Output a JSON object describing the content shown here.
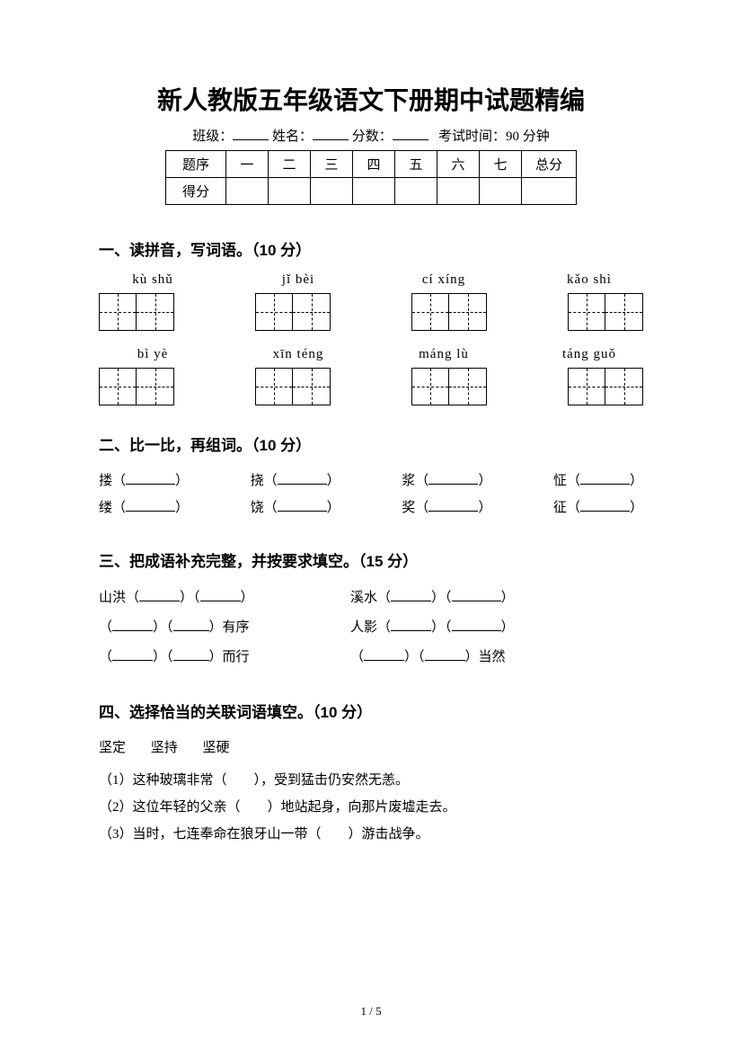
{
  "title": "新人教版五年级语文下册期中试题精编",
  "meta": {
    "class_label": "班级：",
    "name_label": "姓名：",
    "score_label": "分数：",
    "time_label": "考试时间：90 分钟"
  },
  "score_table": {
    "row1": [
      "题序",
      "一",
      "二",
      "三",
      "四",
      "五",
      "六",
      "七",
      "总分"
    ],
    "row2_label": "得分"
  },
  "q1": {
    "heading": "一、读拼音，写词语。（10 分）",
    "row1": [
      "kù  shǔ",
      "jǐ bèi",
      "cí xíng",
      "kǎo shì"
    ],
    "row2": [
      "bì  yè",
      "xīn téng",
      "máng lù",
      "táng guǒ"
    ]
  },
  "q2": {
    "heading": "二、比一比，再组词。（10 分）",
    "rows": [
      [
        "搂",
        "挠",
        "浆",
        "怔"
      ],
      [
        "缕",
        "饶",
        "奖",
        "征"
      ]
    ]
  },
  "q3": {
    "heading": "三、把成语补充完整，并按要求填空。（15 分）",
    "lines": [
      {
        "left_pre": "山洪",
        "left_suf": "",
        "right_pre": "溪水",
        "right_suf": ""
      },
      {
        "left_pre": "",
        "left_suf": "有序",
        "right_pre": "人影",
        "right_suf": ""
      },
      {
        "left_pre": "",
        "left_suf": "而行",
        "right_pre": "",
        "right_suf": "当然"
      }
    ]
  },
  "q4": {
    "heading": "四、选择恰当的关联词语填空。（10 分）",
    "words": [
      "坚定",
      "坚持",
      "坚硬"
    ],
    "items": [
      "（1）这种玻璃非常（　　），受到猛击仍安然无恙。",
      "（2）这位年轻的父亲（　　）地站起身，向那片废墟走去。",
      "（3）当时，七连奉命在狼牙山一带（　　）游击战争。"
    ]
  },
  "footer": {
    "page": "1",
    "sep": " / ",
    "total": "5"
  }
}
